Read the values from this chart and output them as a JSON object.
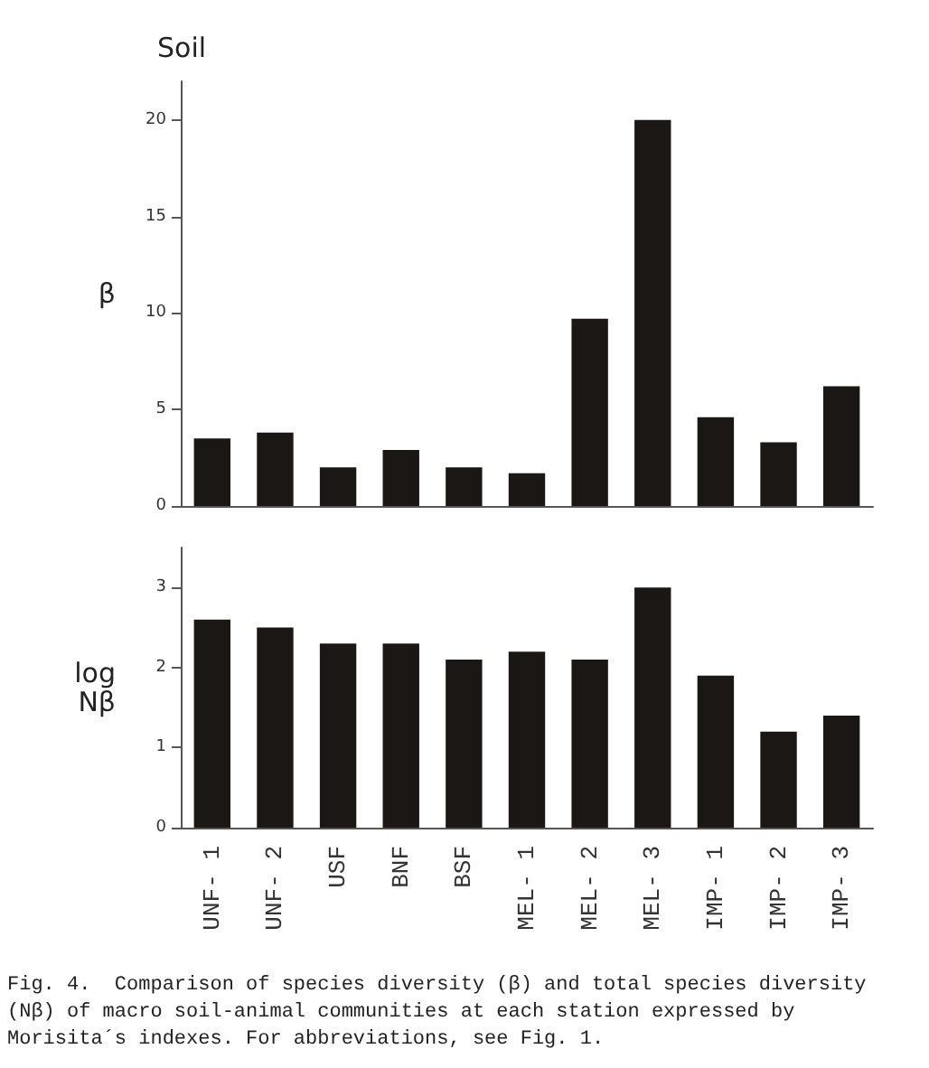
{
  "chart_data": [
    {
      "type": "bar",
      "title": "Soil",
      "ylabel": "β",
      "categories": [
        null,
        null,
        null,
        null,
        null,
        null,
        null,
        null,
        null,
        null,
        null
      ],
      "values": [
        3.5,
        3.8,
        2.0,
        2.9,
        2.0,
        1.7,
        9.7,
        20,
        4.6,
        3.3,
        6.2
      ],
      "color": "#1a1714",
      "ylim": [
        0,
        22
      ],
      "yticks": [
        0,
        5,
        10,
        15,
        20
      ],
      "grid": false,
      "tick_labels": "y"
    },
    {
      "type": "bar",
      "ylabel": "log\nNβ",
      "categories": [
        "UNF- 1",
        "UNF- 2",
        "USF",
        "BNF",
        "BSF",
        "MEL- 1",
        "MEL- 2",
        "MEL- 3",
        "IMP- 1",
        "IMP- 2",
        "IMP- 3"
      ],
      "values": [
        2.6,
        2.5,
        2.3,
        2.3,
        2.1,
        2.2,
        2.1,
        3.0,
        1.9,
        1.2,
        1.4
      ],
      "color": "#1a1714",
      "ylim": [
        0,
        3.5
      ],
      "yticks": [
        0,
        1,
        2,
        3
      ],
      "grid": false,
      "annotations": [
        "Fig. 4.  Comparison of species diversity (β) and total species diversity (Nβ) of macro soil-animal communities at each station expressed by Morisita´s indexes. For abbreviations, see Fig. 1."
      ]
    }
  ]
}
